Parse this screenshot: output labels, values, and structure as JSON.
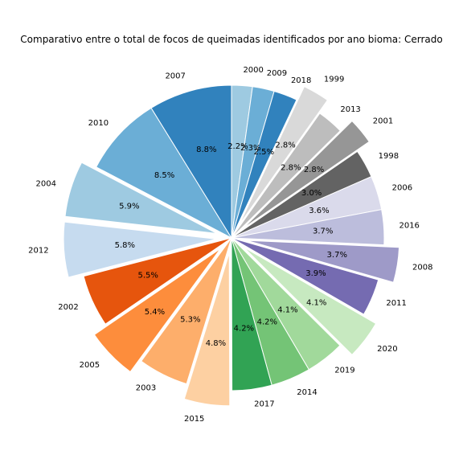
{
  "chart_data": {
    "type": "pie",
    "title": "Comparativo entre o total de focos de queimadas identificados por ano bioma: Cerrado",
    "start_angle_deg": 90,
    "direction": "clockwise",
    "slices": [
      {
        "label": "2000",
        "value": 2.2,
        "pct_label": "2.2%",
        "color": "#9ecae1",
        "exploded": false
      },
      {
        "label": "2009",
        "value": 2.3,
        "pct_label": "2.3%",
        "color": "#6baed6",
        "exploded": false
      },
      {
        "label": "2018",
        "value": 2.5,
        "pct_label": "2.5%",
        "color": "#3182bd",
        "exploded": false
      },
      {
        "label": "1999",
        "value": 2.8,
        "pct_label": "2.8%",
        "color": "#d9d9d9",
        "exploded": true
      },
      {
        "label": "2013",
        "value": 2.8,
        "pct_label": "2.8%",
        "color": "#bdbdbd",
        "exploded": false
      },
      {
        "label": "2001",
        "value": 2.8,
        "pct_label": "2.8%",
        "color": "#969696",
        "exploded": true
      },
      {
        "label": "1998",
        "value": 3.0,
        "pct_label": "3.0%",
        "color": "#636363",
        "exploded": false
      },
      {
        "label": "2006",
        "value": 3.6,
        "pct_label": "3.6%",
        "color": "#dadaeb",
        "exploded": false
      },
      {
        "label": "2016",
        "value": 3.7,
        "pct_label": "3.7%",
        "color": "#bcbddc",
        "exploded": false
      },
      {
        "label": "2008",
        "value": 3.7,
        "pct_label": "3.7%",
        "color": "#9e9ac8",
        "exploded": true
      },
      {
        "label": "2011",
        "value": 3.9,
        "pct_label": "3.9%",
        "color": "#756bb1",
        "exploded": false
      },
      {
        "label": "2020",
        "value": 4.1,
        "pct_label": "4.1%",
        "color": "#c7e9c0",
        "exploded": true
      },
      {
        "label": "2019",
        "value": 4.1,
        "pct_label": "4.1%",
        "color": "#a1d99b",
        "exploded": false
      },
      {
        "label": "2014",
        "value": 4.2,
        "pct_label": "4.2%",
        "color": "#74c476",
        "exploded": false
      },
      {
        "label": "2017",
        "value": 4.2,
        "pct_label": "4.2%",
        "color": "#31a354",
        "exploded": false
      },
      {
        "label": "2015",
        "value": 4.8,
        "pct_label": "4.8%",
        "color": "#fdd0a2",
        "exploded": true
      },
      {
        "label": "2003",
        "value": 5.3,
        "pct_label": "5.3%",
        "color": "#fdae6b",
        "exploded": false
      },
      {
        "label": "2005",
        "value": 5.4,
        "pct_label": "5.4%",
        "color": "#fd8d3c",
        "exploded": true
      },
      {
        "label": "2002",
        "value": 5.5,
        "pct_label": "5.5%",
        "color": "#e6550d",
        "exploded": false
      },
      {
        "label": "2012",
        "value": 5.8,
        "pct_label": "5.8%",
        "color": "#c6dbef",
        "exploded": true
      },
      {
        "label": "2004",
        "value": 5.9,
        "pct_label": "5.9%",
        "color": "#9ecae1",
        "exploded": true
      },
      {
        "label": "2010",
        "value": 8.5,
        "pct_label": "8.5%",
        "color": "#6baed6",
        "exploded": false
      },
      {
        "label": "2007",
        "value": 8.8,
        "pct_label": "8.8%",
        "color": "#3182bd",
        "exploded": false
      }
    ]
  }
}
